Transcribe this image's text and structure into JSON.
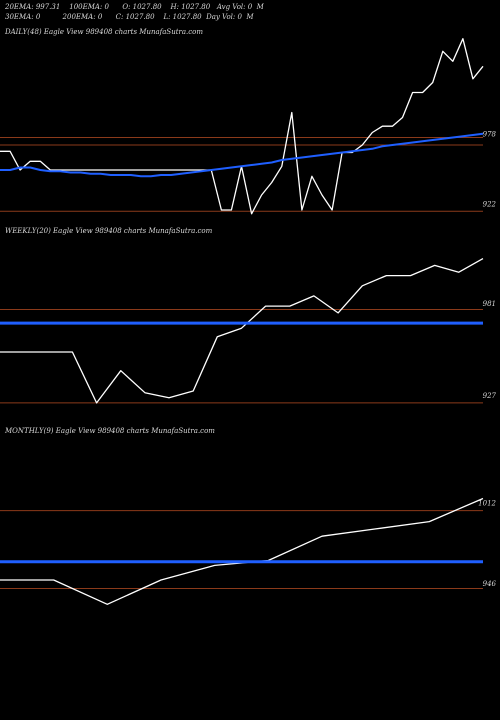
{
  "header": {
    "ema20": "20EMA: 997.31",
    "ema100": "100EMA: 0",
    "open": "O: 1027.80",
    "high": "H: 1027.80",
    "avg_vol": "Avg Vol: 0  M",
    "ema30": "30EMA: 0",
    "ema200": "200EMA: 0",
    "close": "C: 1027.80",
    "low": "L: 1027.80",
    "day_vol": "Day Vol: 0  M"
  },
  "colors": {
    "background": "#000000",
    "price_line": "#ffffff",
    "ema_line": "#1f5fff",
    "level_line": "#8b3a1a",
    "text": "#d8d8d8"
  },
  "chart_data": [
    {
      "type": "line",
      "title": "DAILY(48) Eagle  View  989408 charts MunafaSutra.com",
      "y_ticks": [
        "978",
        "922"
      ],
      "ylim": [
        911,
        1055
      ],
      "levels": [
        981,
        975,
        922
      ],
      "series": [
        {
          "values": [
            970,
            970,
            955,
            962,
            962,
            955,
            955,
            955,
            955,
            955,
            955,
            955,
            955,
            955,
            955,
            955,
            955,
            955,
            955,
            955,
            955,
            955,
            923,
            923,
            958,
            920,
            935,
            945,
            958,
            1001,
            923,
            950,
            935,
            923,
            969,
            969,
            975,
            985,
            990,
            990,
            997,
            1017,
            1017,
            1025,
            1050,
            1042,
            1060,
            1028,
            1038
          ]
        },
        {
          "values": [
            955,
            955,
            957,
            957,
            955,
            954,
            954,
            953,
            953,
            952,
            952,
            951,
            951,
            951,
            950,
            950,
            951,
            951,
            952,
            953,
            954,
            955,
            956,
            957,
            958,
            959,
            960,
            961,
            963,
            964,
            965,
            966,
            967,
            968,
            969,
            970,
            971,
            972,
            974,
            975,
            976,
            977,
            978,
            979,
            980,
            981,
            982,
            983,
            984
          ]
        }
      ]
    },
    {
      "type": "line",
      "title": "WEEKLY(20) Eagle  View  989408 charts MunafaSutra.com",
      "y_ticks": [
        "981",
        "927"
      ],
      "ylim": [
        914,
        1020
      ],
      "levels": [
        982,
        927
      ],
      "series": [
        {
          "values": [
            957,
            957,
            957,
            957,
            927,
            946,
            933,
            930,
            934,
            966,
            971,
            984,
            984,
            990,
            980,
            996,
            1002,
            1002,
            1008,
            1004,
            1012
          ]
        },
        {
          "values": [
            974,
            974,
            974,
            974,
            974,
            974,
            974,
            974,
            974,
            974,
            974,
            974,
            974,
            974,
            974,
            974,
            974,
            974,
            974,
            974,
            974
          ]
        }
      ]
    },
    {
      "type": "line",
      "title": "MONTHLY(9) Eagle  View  989408 charts MunafaSutra.com",
      "y_ticks": [
        "1012",
        "946"
      ],
      "ylim": [
        918,
        1066
      ],
      "levels": [
        1012,
        948
      ],
      "series": [
        {
          "values": [
            955,
            955,
            935,
            955,
            967,
            971,
            991,
            997,
            1003,
            1022
          ]
        },
        {
          "values": [
            970,
            970,
            970,
            970,
            970,
            970,
            970,
            970,
            970,
            970
          ]
        }
      ]
    }
  ]
}
